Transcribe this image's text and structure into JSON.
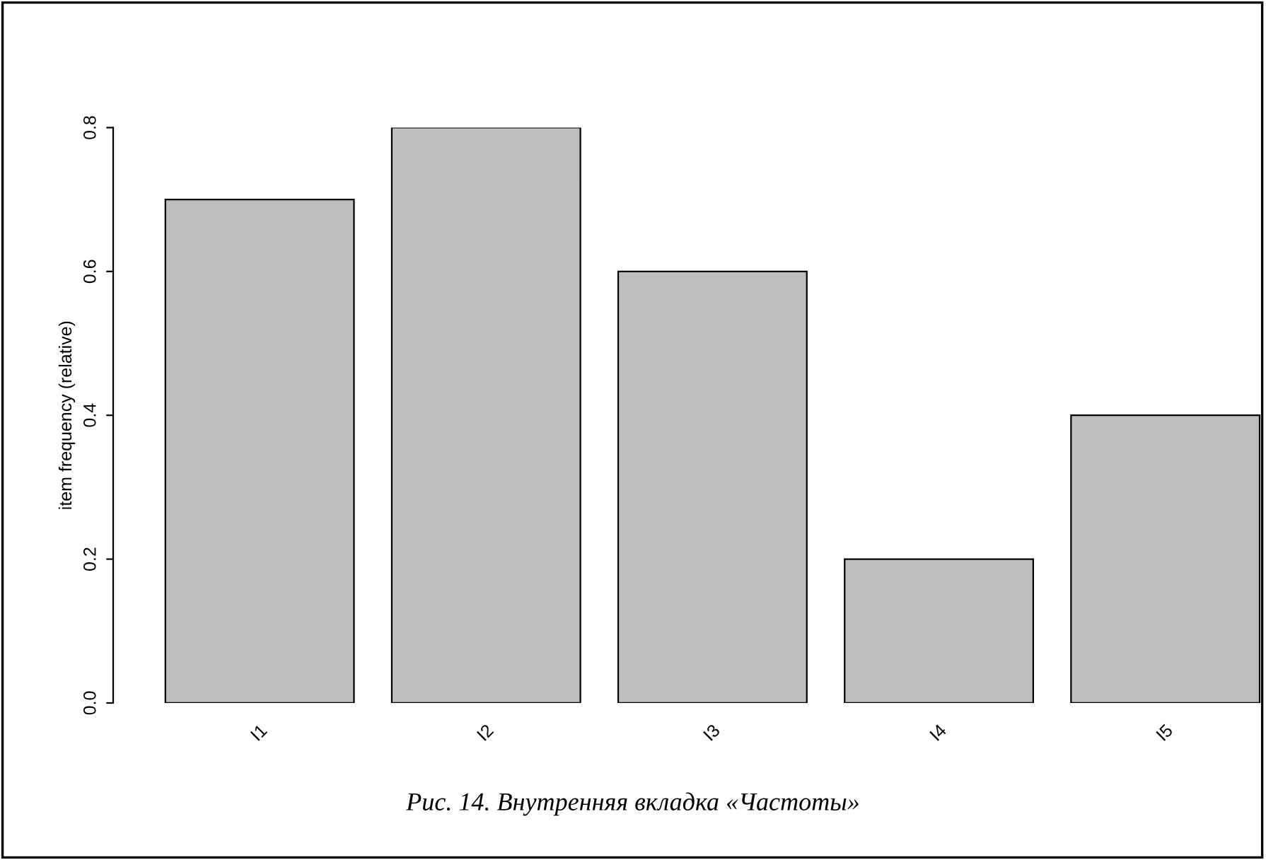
{
  "chart_data": {
    "type": "bar",
    "ylabel": "item frequency (relative)",
    "categories": [
      "I1",
      "I2",
      "I3",
      "I4",
      "I5"
    ],
    "values": [
      0.7,
      0.8,
      0.6,
      0.2,
      0.4
    ],
    "color": "#bebebe",
    "ylim": [
      0,
      0.8
    ],
    "yticks": [
      {
        "value": 0,
        "label": "0.0"
      },
      {
        "value": 0.2,
        "label": "0.2"
      },
      {
        "value": 0.4,
        "label": "0.4"
      },
      {
        "value": 0.6,
        "label": "0.6"
      },
      {
        "value": 0.8,
        "label": "0.8"
      }
    ],
    "grid": false,
    "legend": false,
    "annotations": [
      "Рис. 14. Внутренняя вкладка «Частоты»"
    ]
  }
}
